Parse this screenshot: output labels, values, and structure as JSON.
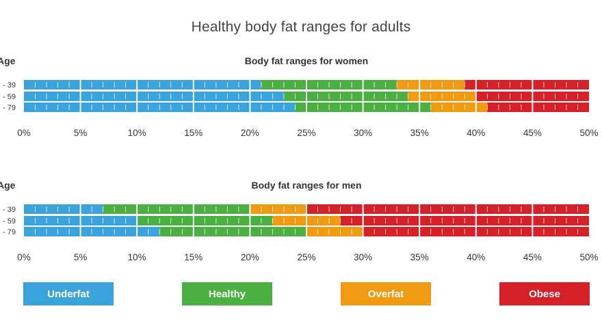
{
  "title": "Healthy body fat ranges for adults",
  "colors": {
    "underfat": "#3aa3dc",
    "healthy": "#4caf42",
    "overfat": "#ef9a10",
    "obese": "#d62027",
    "text": "#333333"
  },
  "legend": [
    {
      "key": "underfat",
      "label": "Underfat"
    },
    {
      "key": "healthy",
      "label": "Healthy"
    },
    {
      "key": "overfat",
      "label": "Overfat"
    },
    {
      "key": "obese",
      "label": "Obese"
    }
  ],
  "chart_data": [
    {
      "type": "bar",
      "stacked": true,
      "orientation": "horizontal",
      "title": "Body fat ranges for women",
      "ylabel": "Age",
      "xlim": [
        0,
        50
      ],
      "xticks": [
        "0%",
        "5%",
        "10%",
        "15%",
        "20%",
        "25%",
        "30%",
        "35%",
        "40%",
        "45%",
        "50%"
      ],
      "categories": [
        "- 39",
        "- 59",
        "- 79"
      ],
      "series": [
        {
          "name": "Underfat",
          "key": "underfat",
          "values": [
            21,
            23,
            24
          ]
        },
        {
          "name": "Healthy",
          "key": "healthy",
          "values": [
            12,
            11,
            12
          ]
        },
        {
          "name": "Overfat",
          "key": "overfat",
          "values": [
            6,
            6,
            5
          ]
        },
        {
          "name": "Obese",
          "key": "obese",
          "values": [
            11,
            10,
            9
          ]
        }
      ]
    },
    {
      "type": "bar",
      "stacked": true,
      "orientation": "horizontal",
      "title": "Body fat ranges for men",
      "ylabel": "Age",
      "xlim": [
        0,
        50
      ],
      "xticks": [
        "0%",
        "5%",
        "10%",
        "15%",
        "20%",
        "25%",
        "30%",
        "35%",
        "40%",
        "45%",
        "50%"
      ],
      "categories": [
        "- 39",
        "- 59",
        "- 79"
      ],
      "series": [
        {
          "name": "Underfat",
          "key": "underfat",
          "values": [
            7,
            10,
            12
          ]
        },
        {
          "name": "Healthy",
          "key": "healthy",
          "values": [
            13,
            12,
            13
          ]
        },
        {
          "name": "Overfat",
          "key": "overfat",
          "values": [
            5,
            6,
            5
          ]
        },
        {
          "name": "Obese",
          "key": "obese",
          "values": [
            25,
            22,
            20
          ]
        }
      ]
    }
  ]
}
